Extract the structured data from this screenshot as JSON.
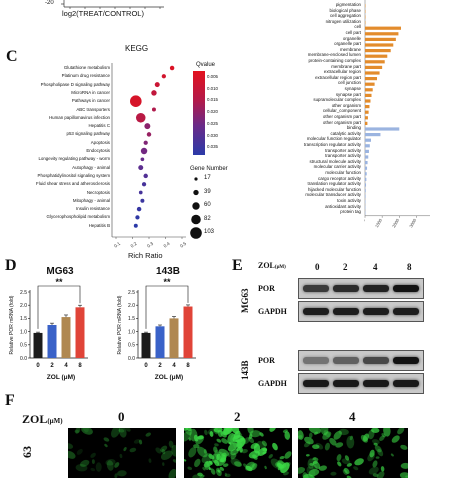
{
  "volcano": {
    "y_tick": "-20",
    "x_label": "log2(TREAT/CONTROL)"
  },
  "kegg": {
    "letter": "C",
    "title": "KEGG",
    "x_label": "Rich Ratio",
    "x_ticks": [
      "0.1",
      "0.2",
      "0.3",
      "0.4",
      "0.5"
    ],
    "qvalue_title": "Qvalue",
    "qvalue_ticks": [
      "0.005",
      "0.010",
      "0.015",
      "0.020",
      "0.025",
      "0.030",
      "0.035"
    ],
    "size_title": "Gene Number",
    "size_ticks": [
      "17",
      "39",
      "60",
      "82",
      "103"
    ],
    "pathways": [
      "Glutathione metabolism",
      "Platinum drug resistance",
      "Phospholipase D signaling pathway",
      "MicroRNA in cancer",
      "Pathways in cancer",
      "ABC transporters",
      "Human papillomavirus infection",
      "Hepatitis C",
      "p53 signaling pathway",
      "Apoptosis",
      "Endocytosis",
      "Longevity regulating pathway - worm",
      "Autophagy - animal",
      "Phosphatidylinositol signaling system",
      "Fluid shear stress and atherosclerosis",
      "Necroptosis",
      "Mitophagy - animal",
      "Insulin resistance",
      "Glycerophospholipid metabolism",
      "Hepatitis B"
    ],
    "points_x": [
      0.44,
      0.39,
      0.35,
      0.33,
      0.22,
      0.33,
      0.25,
      0.29,
      0.3,
      0.28,
      0.27,
      0.26,
      0.25,
      0.28,
      0.27,
      0.25,
      0.26,
      0.24,
      0.23,
      0.22
    ],
    "points_q": [
      0.002,
      0.004,
      0.006,
      0.008,
      0.003,
      0.012,
      0.01,
      0.018,
      0.016,
      0.02,
      0.022,
      0.024,
      0.026,
      0.028,
      0.03,
      0.03,
      0.032,
      0.033,
      0.034,
      0.035
    ],
    "points_n": [
      30,
      28,
      35,
      40,
      103,
      25,
      82,
      45,
      30,
      28,
      50,
      22,
      35,
      30,
      28,
      22,
      25,
      30,
      28,
      25
    ]
  },
  "go": {
    "terms": [
      "pigmentation",
      "biological phase",
      "cell aggregation",
      "nitrogen utilization",
      "cell",
      "cell part",
      "organelle",
      "organelle part",
      "membrane",
      "membrane-enclosed lumen",
      "protein-containing complex",
      "membrane part",
      "extracellular region",
      "extracellular region part",
      "cell junction",
      "synapse",
      "synapse part",
      "supramolecular complex",
      "other organism",
      "cellular_component",
      "other organism part",
      "other organism part",
      "binding",
      "catalytic activity",
      "molecular function regulator",
      "transcription regulator activity",
      "transporter activity",
      "transporter activity",
      "structural molecule activity",
      "molecular carrier activity",
      "molecular function",
      "cargo receptor activity",
      "translation regulator activity",
      "hijacked molecular function",
      "molecular transducer activity",
      "toxin activity",
      "antioxidant activity",
      "protein tag"
    ],
    "values": [
      5,
      5,
      5,
      5,
      2100,
      1950,
      1800,
      1650,
      1500,
      1300,
      1150,
      1000,
      850,
      700,
      560,
      450,
      380,
      320,
      260,
      210,
      170,
      140,
      2000,
      900,
      350,
      280,
      230,
      190,
      150,
      120,
      100,
      80,
      60,
      45,
      35,
      25,
      18,
      10
    ],
    "x_ticks": [
      "0",
      "1000",
      "2000",
      "3000"
    ]
  },
  "qpcr": {
    "letter": "D",
    "y_label": "Relative POR mRNA (fold)",
    "x_title": "ZOL (μM)",
    "doses": [
      "0",
      "2",
      "4",
      "8"
    ],
    "y_ticks": [
      "0.0",
      "0.5",
      "1.0",
      "1.5",
      "2.0",
      "2.5"
    ],
    "sig": "**",
    "colors": [
      "#1c1c1c",
      "#3a62c8",
      "#b08850",
      "#e04438"
    ],
    "charts": [
      {
        "title": "MG63",
        "values": [
          0.95,
          1.25,
          1.55,
          1.92
        ],
        "errors": [
          0.03,
          0.07,
          0.08,
          0.08
        ]
      },
      {
        "title": "143B",
        "values": [
          0.95,
          1.2,
          1.5,
          1.95
        ],
        "errors": [
          0.03,
          0.05,
          0.07,
          0.06
        ]
      }
    ]
  },
  "blot": {
    "letter": "E",
    "zol_label": "ZOL",
    "zol_unit": "(μM)",
    "doses": [
      "0",
      "2",
      "4",
      "8"
    ],
    "groups": [
      {
        "cell": "MG63",
        "rows": [
          {
            "label": "POR",
            "intensity": [
              0.75,
              0.82,
              0.88,
              0.95
            ]
          },
          {
            "label": "GAPDH",
            "intensity": [
              0.9,
              0.9,
              0.9,
              0.9
            ]
          }
        ]
      },
      {
        "cell": "143B",
        "rows": [
          {
            "label": "POR",
            "intensity": [
              0.45,
              0.55,
              0.68,
              0.95
            ]
          },
          {
            "label": "GAPDH",
            "intensity": [
              0.92,
              0.92,
              0.92,
              0.92
            ]
          }
        ]
      }
    ]
  },
  "micro": {
    "letter": "F",
    "zol_label": "ZOL",
    "zol_unit": "(μM)",
    "doses": [
      "0",
      "2",
      "4"
    ],
    "row_label": "63"
  }
}
